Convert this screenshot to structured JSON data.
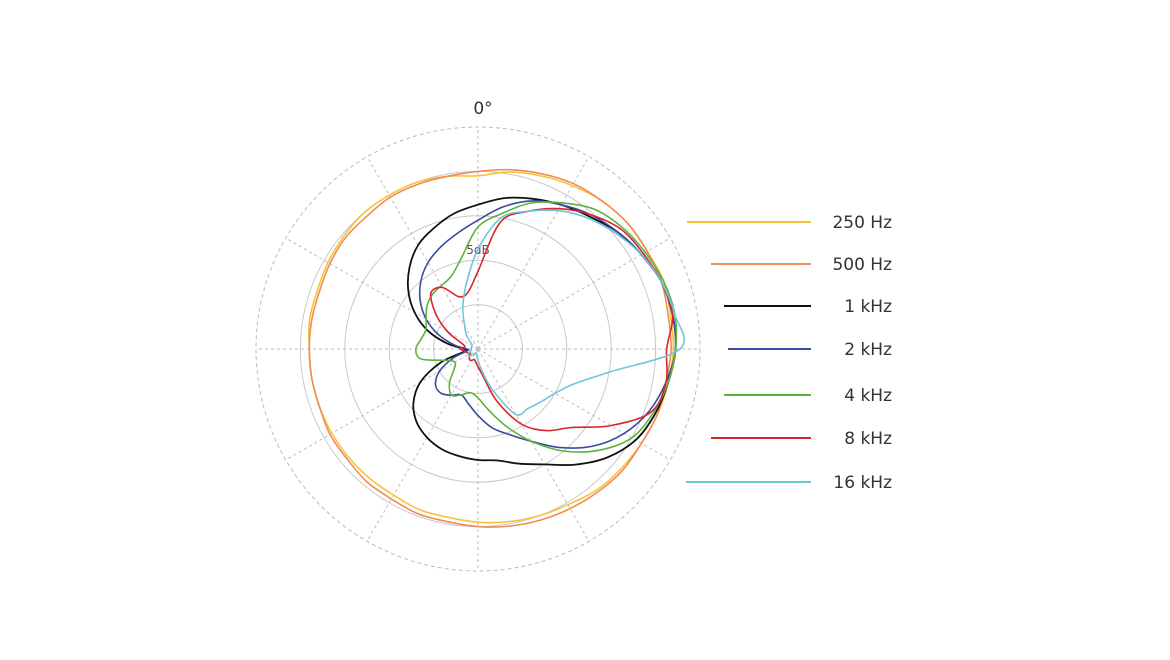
{
  "chart_data": {
    "type": "polar-line",
    "angle_label": "0°",
    "ring_label": "5dB",
    "rings": 5,
    "spokes_deg": 30,
    "legend_position": "right",
    "series": [
      {
        "name": "250 Hz",
        "color": "#f5c33b",
        "r": [
          0.78,
          0.81,
          0.83,
          0.85,
          0.87,
          0.88,
          0.88,
          0.89,
          0.88,
          0.88,
          0.87,
          0.86,
          0.85,
          0.84,
          0.83,
          0.81,
          0.8,
          0.79,
          0.78,
          0.77,
          0.77,
          0.76,
          0.76,
          0.76,
          0.76,
          0.76,
          0.76,
          0.76,
          0.77,
          0.77,
          0.78,
          0.79,
          0.8,
          0.8,
          0.8,
          0.79
        ]
      },
      {
        "name": "500 Hz",
        "color": "#f08c55",
        "r": [
          0.8,
          0.82,
          0.84,
          0.86,
          0.87,
          0.88,
          0.88,
          0.88,
          0.87,
          0.87,
          0.86,
          0.86,
          0.85,
          0.85,
          0.84,
          0.83,
          0.82,
          0.81,
          0.8,
          0.79,
          0.79,
          0.78,
          0.78,
          0.77,
          0.77,
          0.76,
          0.76,
          0.76,
          0.76,
          0.76,
          0.77,
          0.78,
          0.78,
          0.79,
          0.79,
          0.79
        ]
      },
      {
        "name": "1 kHz",
        "color": "#111111",
        "r": [
          0.65,
          0.69,
          0.72,
          0.75,
          0.78,
          0.82,
          0.85,
          0.88,
          0.89,
          0.89,
          0.87,
          0.85,
          0.82,
          0.76,
          0.68,
          0.6,
          0.55,
          0.51,
          0.5,
          0.49,
          0.48,
          0.46,
          0.43,
          0.38,
          0.3,
          0.18,
          0.06,
          0.06,
          0.14,
          0.24,
          0.33,
          0.41,
          0.48,
          0.54,
          0.58,
          0.62
        ]
      },
      {
        "name": "2 kHz",
        "color": "#3a4a9e",
        "r": [
          0.58,
          0.65,
          0.71,
          0.75,
          0.79,
          0.82,
          0.85,
          0.88,
          0.89,
          0.89,
          0.86,
          0.82,
          0.76,
          0.68,
          0.58,
          0.48,
          0.41,
          0.36,
          0.3,
          0.25,
          0.22,
          0.24,
          0.26,
          0.25,
          0.2,
          0.12,
          0.05,
          0.05,
          0.11,
          0.19,
          0.27,
          0.34,
          0.4,
          0.45,
          0.49,
          0.53
        ]
      },
      {
        "name": "4 kHz",
        "color": "#5db33c",
        "r": [
          0.55,
          0.62,
          0.7,
          0.76,
          0.82,
          0.85,
          0.87,
          0.89,
          0.9,
          0.89,
          0.87,
          0.84,
          0.8,
          0.71,
          0.6,
          0.48,
          0.37,
          0.28,
          0.22,
          0.2,
          0.22,
          0.24,
          0.2,
          0.14,
          0.12,
          0.15,
          0.26,
          0.28,
          0.26,
          0.25,
          0.27,
          0.3,
          0.32,
          0.33,
          0.35,
          0.42
        ]
      },
      {
        "name": "8 kHz",
        "color": "#d9252b",
        "r": [
          0.35,
          0.58,
          0.66,
          0.73,
          0.79,
          0.84,
          0.86,
          0.88,
          0.89,
          0.85,
          0.86,
          0.83,
          0.69,
          0.55,
          0.48,
          0.39,
          0.25,
          0.12,
          0.08,
          0.06,
          0.05,
          0.06,
          0.06,
          0.05,
          0.04,
          0.05,
          0.06,
          0.08,
          0.06,
          0.08,
          0.16,
          0.25,
          0.33,
          0.32,
          0.25,
          0.26
        ]
      },
      {
        "name": "16 kHz",
        "color": "#6ec6dc",
        "r": [
          0.45,
          0.6,
          0.66,
          0.72,
          0.77,
          0.81,
          0.85,
          0.88,
          0.9,
          0.91,
          0.6,
          0.46,
          0.4,
          0.37,
          0.35,
          0.34,
          0.2,
          0.1,
          0.05,
          0.03,
          0.02,
          0.02,
          0.03,
          0.05,
          0.05,
          0.04,
          0.03,
          0.03,
          0.03,
          0.03,
          0.03,
          0.04,
          0.08,
          0.12,
          0.2,
          0.3
        ]
      }
    ]
  }
}
